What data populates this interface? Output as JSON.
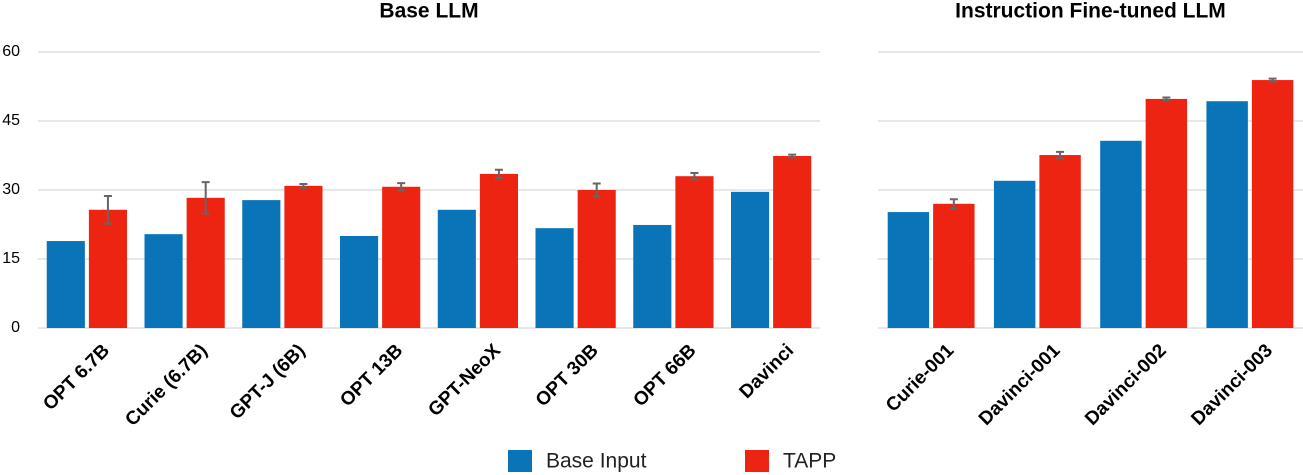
{
  "chart_data": [
    {
      "type": "bar",
      "title": "Base LLM",
      "categories": [
        "OPT 6.7B",
        "Curie (6.7B)",
        "GPT-J (6B)",
        "OPT 13B",
        "GPT-NeoX",
        "OPT 30B",
        "OPT 66B",
        "Davinci"
      ],
      "series": [
        {
          "name": "Base Input",
          "color": "#0a74b8",
          "values": [
            18.9,
            20.4,
            27.8,
            20.0,
            25.7,
            21.7,
            22.4,
            29.6
          ]
        },
        {
          "name": "TAPP",
          "color": "#ee2412",
          "values": [
            25.7,
            28.3,
            30.9,
            30.7,
            33.5,
            30.0,
            33.0,
            37.4
          ],
          "errors": [
            3.0,
            3.4,
            0.4,
            0.8,
            0.9,
            1.4,
            0.7,
            0.3
          ]
        }
      ],
      "ylim": [
        0,
        60
      ],
      "yticks": [
        0,
        15,
        30,
        45,
        60
      ],
      "grid": true
    },
    {
      "type": "bar",
      "title": "Instruction Fine-tuned LLM",
      "categories": [
        "Curie-001",
        "Davinci-001",
        "Davinci-002",
        "Davinci-003"
      ],
      "series": [
        {
          "color": "#0a74b8",
          "values": [
            25.2,
            32.0,
            40.7,
            49.3
          ]
        },
        {
          "color": "#ee2412",
          "values": [
            27.0,
            37.6,
            49.8,
            53.9
          ],
          "errors": [
            1.0,
            0.7,
            0.3,
            0.3
          ]
        }
      ],
      "ylim": [
        0,
        60
      ],
      "grid": true
    }
  ]
}
